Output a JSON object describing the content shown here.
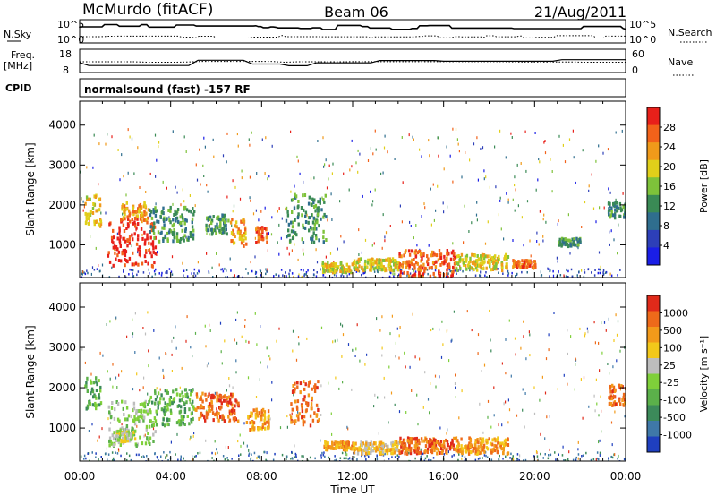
{
  "header": {
    "station": "McMurdo (fitACF)",
    "beam": "Beam 06",
    "date": "21/Aug/2011"
  },
  "status_panel": {
    "nsky_label": "N.Sky",
    "nsearch_label": "N.Search",
    "freq_label_1": "Freq.",
    "freq_label_2": "[MHz]",
    "nave_label": "Nave",
    "cpid_label": "CPID",
    "cpid_value": "normalsound (fast) -157 RF",
    "noise_ticks": [
      "10^5",
      "10^0"
    ],
    "freq_ticks": [
      "18",
      "8"
    ],
    "nave_ticks": [
      "60",
      "0"
    ]
  },
  "colors": {
    "power_scale": [
      "#1a1ee6",
      "#2d3fb8",
      "#2f6e8e",
      "#3a8a55",
      "#7ec23a",
      "#e0cf1a",
      "#f09a1a",
      "#f2621a",
      "#e8201a"
    ],
    "velocity_scale": [
      "#1f3fbf",
      "#3f78a8",
      "#3c8a5a",
      "#5bb04a",
      "#7fd03a",
      "#bdbdbd",
      "#f3c81a",
      "#f39a1a",
      "#ee6a1a",
      "#e02a1a"
    ]
  },
  "chart_data": [
    {
      "type": "heatmap",
      "name": "power-panel",
      "xlabel": "Time UT",
      "ylabel": "Slant Range [km]",
      "x_ticks": [
        "00:00",
        "04:00",
        "08:00",
        "12:00",
        "16:00",
        "20:00",
        "00:00"
      ],
      "x_range_hours": [
        0,
        24
      ],
      "y_range_km": [
        180,
        4600
      ],
      "y_ticks": [
        1000,
        2000,
        3000,
        4000
      ],
      "colorbar_label": "Power [dB]",
      "colorbar_ticks": [
        4,
        8,
        12,
        16,
        20,
        24,
        28
      ],
      "colorbar_range": [
        0,
        31
      ],
      "regions": [
        {
          "t0": 0.2,
          "t1": 0.9,
          "r0": 1500,
          "r1": 2300,
          "level": 5
        },
        {
          "t0": 1.2,
          "t1": 3.3,
          "r0": 500,
          "r1": 1700,
          "level": 8
        },
        {
          "t0": 1.8,
          "t1": 3.0,
          "r0": 1600,
          "r1": 2100,
          "level": 6
        },
        {
          "t0": 3.0,
          "t1": 5.0,
          "r0": 1100,
          "r1": 2000,
          "level": 3
        },
        {
          "t0": 5.5,
          "t1": 6.5,
          "r0": 1300,
          "r1": 1800,
          "level": 3
        },
        {
          "t0": 6.6,
          "t1": 7.3,
          "r0": 1000,
          "r1": 1700,
          "level": 6
        },
        {
          "t0": 7.7,
          "t1": 8.2,
          "r0": 1100,
          "r1": 1500,
          "level": 7
        },
        {
          "t0": 9.0,
          "t1": 10.8,
          "r0": 1100,
          "r1": 2300,
          "level": 3
        },
        {
          "t0": 10.5,
          "t1": 12.0,
          "r0": 350,
          "r1": 600,
          "level": 5
        },
        {
          "t0": 12.0,
          "t1": 14.0,
          "r0": 400,
          "r1": 700,
          "level": 5
        },
        {
          "t0": 14.0,
          "t1": 16.5,
          "r0": 200,
          "r1": 900,
          "level": 7
        },
        {
          "t0": 16.5,
          "t1": 18.8,
          "r0": 400,
          "r1": 800,
          "level": 5
        },
        {
          "t0": 19.0,
          "t1": 20.0,
          "r0": 450,
          "r1": 650,
          "level": 7
        },
        {
          "t0": 21.0,
          "t1": 22.0,
          "r0": 1000,
          "r1": 1200,
          "level": 3
        },
        {
          "t0": 23.2,
          "t1": 24.0,
          "r0": 1700,
          "r1": 2100,
          "level": 3
        }
      ]
    },
    {
      "type": "heatmap",
      "name": "velocity-panel",
      "xlabel": "Time UT",
      "ylabel": "Slant Range [km]",
      "x_ticks": [
        "00:00",
        "04:00",
        "08:00",
        "12:00",
        "16:00",
        "20:00",
        "00:00"
      ],
      "x_range_hours": [
        0,
        24
      ],
      "y_range_km": [
        180,
        4600
      ],
      "y_ticks": [
        1000,
        2000,
        3000,
        4000
      ],
      "colorbar_label": "Velocity [m s⁻¹]",
      "colorbar_ticks": [
        "1000",
        "500",
        "100",
        "25",
        "-25",
        "-100",
        "-500",
        "-1000"
      ],
      "regions": [
        {
          "t0": 0.2,
          "t1": 0.9,
          "r0": 1500,
          "r1": 2300,
          "level": 3
        },
        {
          "t0": 1.2,
          "t1": 3.3,
          "r0": 600,
          "r1": 1700,
          "level": 4
        },
        {
          "t0": 1.6,
          "t1": 2.4,
          "r0": 700,
          "r1": 1000,
          "level": 5
        },
        {
          "t0": 3.0,
          "t1": 5.0,
          "r0": 1100,
          "r1": 2000,
          "level": 3
        },
        {
          "t0": 5.0,
          "t1": 7.0,
          "r0": 1200,
          "r1": 1900,
          "level": 8
        },
        {
          "t0": 7.3,
          "t1": 8.3,
          "r0": 1000,
          "r1": 1500,
          "level": 7
        },
        {
          "t0": 9.2,
          "t1": 10.5,
          "r0": 1100,
          "r1": 2200,
          "level": 8
        },
        {
          "t0": 10.7,
          "t1": 12.0,
          "r0": 500,
          "r1": 700,
          "level": 7
        },
        {
          "t0": 12.0,
          "t1": 14.0,
          "r0": 400,
          "r1": 700,
          "level": 6
        },
        {
          "t0": 14.0,
          "t1": 16.5,
          "r0": 400,
          "r1": 800,
          "level": 8
        },
        {
          "t0": 16.5,
          "t1": 18.8,
          "r0": 400,
          "r1": 800,
          "level": 7
        },
        {
          "t0": 23.2,
          "t1": 24.0,
          "r0": 1600,
          "r1": 2100,
          "level": 8
        }
      ]
    }
  ]
}
